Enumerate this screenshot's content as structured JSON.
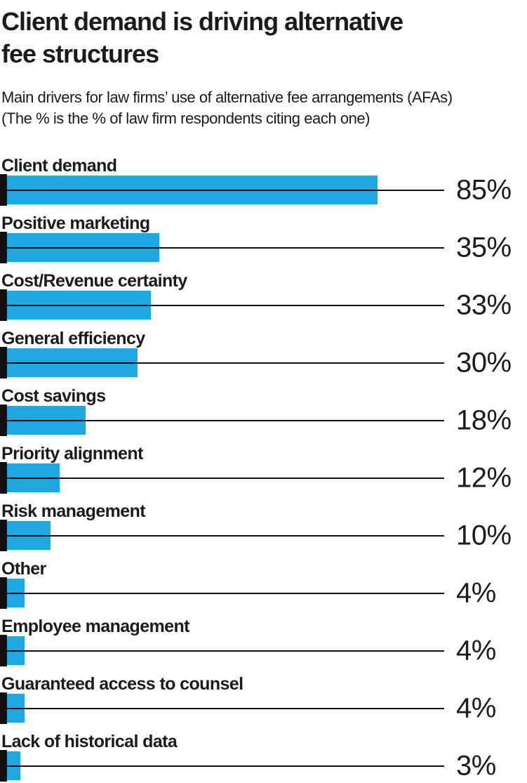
{
  "header": {
    "title_lines": [
      "Client demand is driving alternative",
      "fee structures"
    ],
    "subtitle_lines": [
      "Main drivers for law firms’ use of alternative fee arrangements (AFAs)",
      "(The % is the % of law firm respondents citing each one)"
    ]
  },
  "chart_data": {
    "type": "bar",
    "orientation": "horizontal",
    "title": "Client demand is driving alternative fee structures",
    "subtitle": "Main drivers for law firms’ use of alternative fee arrangements (AFAs) (The % is the % of law firm respondents citing each one)",
    "categories": [
      "Client demand",
      "Positive marketing",
      "Cost/Revenue certainty",
      "General efficiency",
      "Cost savings",
      "Priority alignment",
      "Risk management",
      "Other",
      "Employee management",
      "Guaranteed access to counsel",
      "Lack of historical data"
    ],
    "values": [
      85,
      35,
      33,
      30,
      18,
      12,
      10,
      4,
      4,
      4,
      3
    ],
    "value_suffix": "%",
    "value_labels": [
      "85%",
      "35%",
      "33%",
      "30%",
      "18%",
      "12%",
      "10%",
      "4%",
      "4%",
      "4%",
      "3%"
    ],
    "xlim": [
      0,
      100
    ],
    "grid": false,
    "legend": false,
    "colors": {
      "bar": "#1ea7e1",
      "axis_tick": "#111111",
      "leader_line": "#111111",
      "text": "#1b1b1b"
    }
  }
}
